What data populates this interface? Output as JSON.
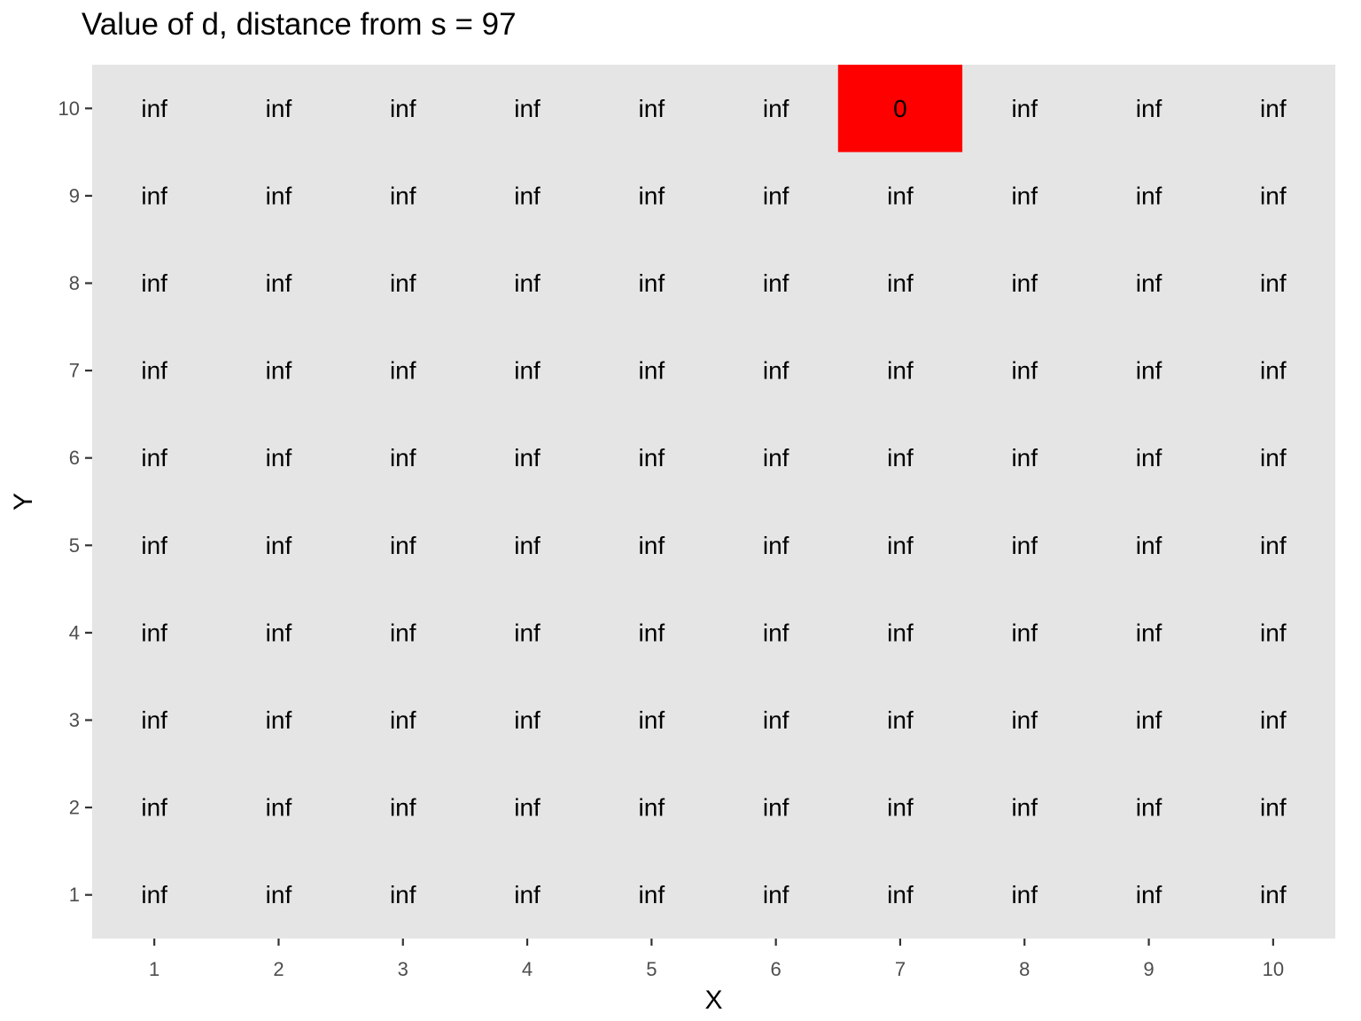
{
  "chart_data": {
    "type": "heatmap",
    "title": "Value of d, distance from s = 97",
    "xlabel": "X",
    "ylabel": "Y",
    "x_ticks": [
      "1",
      "2",
      "3",
      "4",
      "5",
      "6",
      "7",
      "8",
      "9",
      "10"
    ],
    "y_ticks": [
      "1",
      "2",
      "3",
      "4",
      "5",
      "6",
      "7",
      "8",
      "9",
      "10"
    ],
    "xlim": [
      0.5,
      10.5
    ],
    "ylim": [
      0.5,
      10.5
    ],
    "grid": false,
    "colors": {
      "panel_background": "#e5e5e5",
      "highlight": "#ff0000"
    },
    "highlighted_cells": [
      {
        "x": 7,
        "y": 10
      }
    ],
    "rows": [
      {
        "y": 10,
        "values": [
          "inf",
          "inf",
          "inf",
          "inf",
          "inf",
          "inf",
          "0",
          "inf",
          "inf",
          "inf"
        ]
      },
      {
        "y": 9,
        "values": [
          "inf",
          "inf",
          "inf",
          "inf",
          "inf",
          "inf",
          "inf",
          "inf",
          "inf",
          "inf"
        ]
      },
      {
        "y": 8,
        "values": [
          "inf",
          "inf",
          "inf",
          "inf",
          "inf",
          "inf",
          "inf",
          "inf",
          "inf",
          "inf"
        ]
      },
      {
        "y": 7,
        "values": [
          "inf",
          "inf",
          "inf",
          "inf",
          "inf",
          "inf",
          "inf",
          "inf",
          "inf",
          "inf"
        ]
      },
      {
        "y": 6,
        "values": [
          "inf",
          "inf",
          "inf",
          "inf",
          "inf",
          "inf",
          "inf",
          "inf",
          "inf",
          "inf"
        ]
      },
      {
        "y": 5,
        "values": [
          "inf",
          "inf",
          "inf",
          "inf",
          "inf",
          "inf",
          "inf",
          "inf",
          "inf",
          "inf"
        ]
      },
      {
        "y": 4,
        "values": [
          "inf",
          "inf",
          "inf",
          "inf",
          "inf",
          "inf",
          "inf",
          "inf",
          "inf",
          "inf"
        ]
      },
      {
        "y": 3,
        "values": [
          "inf",
          "inf",
          "inf",
          "inf",
          "inf",
          "inf",
          "inf",
          "inf",
          "inf",
          "inf"
        ]
      },
      {
        "y": 2,
        "values": [
          "inf",
          "inf",
          "inf",
          "inf",
          "inf",
          "inf",
          "inf",
          "inf",
          "inf",
          "inf"
        ]
      },
      {
        "y": 1,
        "values": [
          "inf",
          "inf",
          "inf",
          "inf",
          "inf",
          "inf",
          "inf",
          "inf",
          "inf",
          "inf"
        ]
      }
    ]
  }
}
